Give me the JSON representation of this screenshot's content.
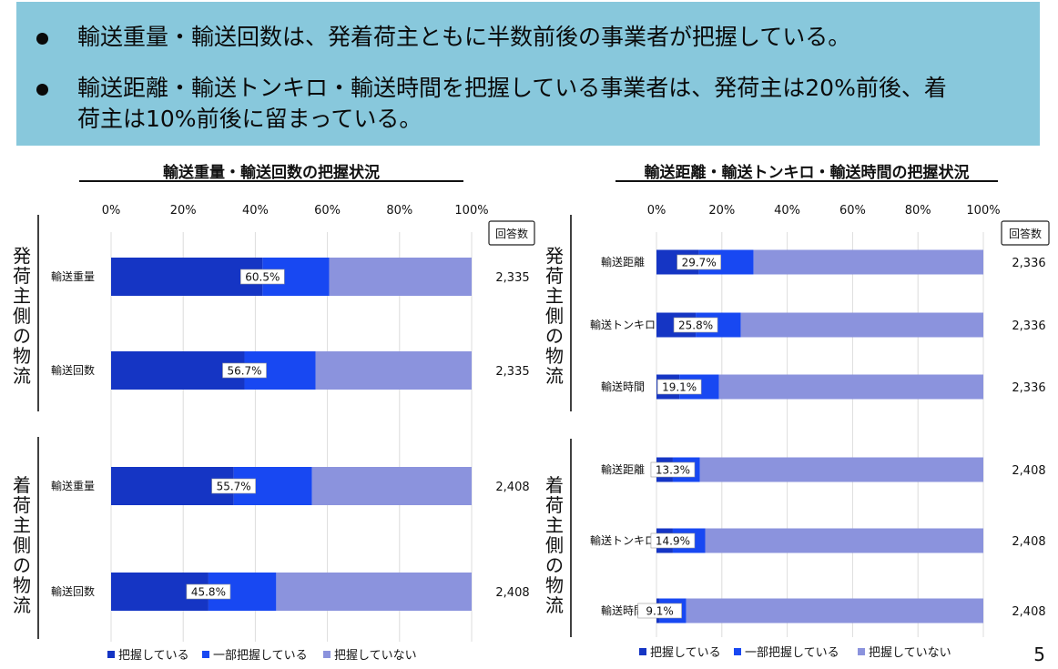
{
  "bullets": [
    "輸送重量・輸送回数は、発着荷主ともに半数前後の事業者が把握している。",
    "輸送距離・輸送トンキロ・輸送時間を把握している事業者は、発荷主は20%前後、着",
    "荷主は10%前後に留まっている。"
  ],
  "page_number": "5",
  "colors": {
    "grasp": "#1535c4",
    "partial": "#1848f2",
    "none": "#8b93dd",
    "banner": "#88c8dc"
  },
  "legend": [
    "把握している",
    "一部把握している",
    "把握していない"
  ],
  "response_count_label": "回答数",
  "chart_data": [
    {
      "type": "bar",
      "orientation": "horizontal",
      "stacked": true,
      "title": "輸送重量・輸送回数の把握状況",
      "xlim": [
        0,
        100
      ],
      "xticks": [
        "0%",
        "20%",
        "40%",
        "60%",
        "80%",
        "100%"
      ],
      "groups": [
        {
          "label": "発荷主側の物流",
          "categories": [
            "輸送重量",
            "輸送回数"
          ],
          "shown_label": [
            "60.5%",
            "56.7%"
          ],
          "label_position": [
            42,
            37
          ],
          "series": [
            {
              "name": "把握している",
              "values": [
                42,
                37
              ]
            },
            {
              "name": "一部把握している",
              "values": [
                18.5,
                19.7
              ]
            },
            {
              "name": "把握していない",
              "values": [
                39.5,
                43.3
              ]
            }
          ],
          "counts": [
            "2,335",
            "2,335"
          ]
        },
        {
          "label": "着荷主側の物流",
          "categories": [
            "輸送重量",
            "輸送回数"
          ],
          "shown_label": [
            "55.7%",
            "45.8%"
          ],
          "label_position": [
            34,
            27
          ],
          "series": [
            {
              "name": "把握している",
              "values": [
                34,
                27
              ]
            },
            {
              "name": "一部把握している",
              "values": [
                21.7,
                18.8
              ]
            },
            {
              "name": "把握していない",
              "values": [
                44.3,
                54.2
              ]
            }
          ],
          "counts": [
            "2,408",
            "2,408"
          ]
        }
      ]
    },
    {
      "type": "bar",
      "orientation": "horizontal",
      "stacked": true,
      "title": "輸送距離・輸送トンキロ・輸送時間の把握状況",
      "xlim": [
        0,
        100
      ],
      "xticks": [
        "0%",
        "20%",
        "40%",
        "60%",
        "80%",
        "100%"
      ],
      "groups": [
        {
          "label": "発荷主側の物流",
          "categories": [
            "輸送距離",
            "輸送トンキロ",
            "輸送時間"
          ],
          "shown_label": [
            "29.7%",
            "25.8%",
            "19.1%"
          ],
          "label_position": [
            13,
            12,
            7
          ],
          "series": [
            {
              "name": "把握している",
              "values": [
                13,
                12,
                7
              ]
            },
            {
              "name": "一部把握している",
              "values": [
                16.7,
                13.8,
                12.1
              ]
            },
            {
              "name": "把握していない",
              "values": [
                70.3,
                74.2,
                80.9
              ]
            }
          ],
          "counts": [
            "2,336",
            "2,336",
            "2,336"
          ]
        },
        {
          "label": "着荷主側の物流",
          "categories": [
            "輸送距離",
            "輸送トンキロ",
            "輸送時間"
          ],
          "shown_label": [
            "13.3%",
            "14.9%",
            "9.1%"
          ],
          "label_position": [
            5,
            5,
            1
          ],
          "series": [
            {
              "name": "把握している",
              "values": [
                5,
                5,
                1
              ]
            },
            {
              "name": "一部把握している",
              "values": [
                8.3,
                9.9,
                8.1
              ]
            },
            {
              "name": "把握していない",
              "values": [
                86.7,
                85.1,
                90.9
              ]
            }
          ],
          "counts": [
            "2,408",
            "2,408",
            "2,408"
          ]
        }
      ]
    }
  ]
}
